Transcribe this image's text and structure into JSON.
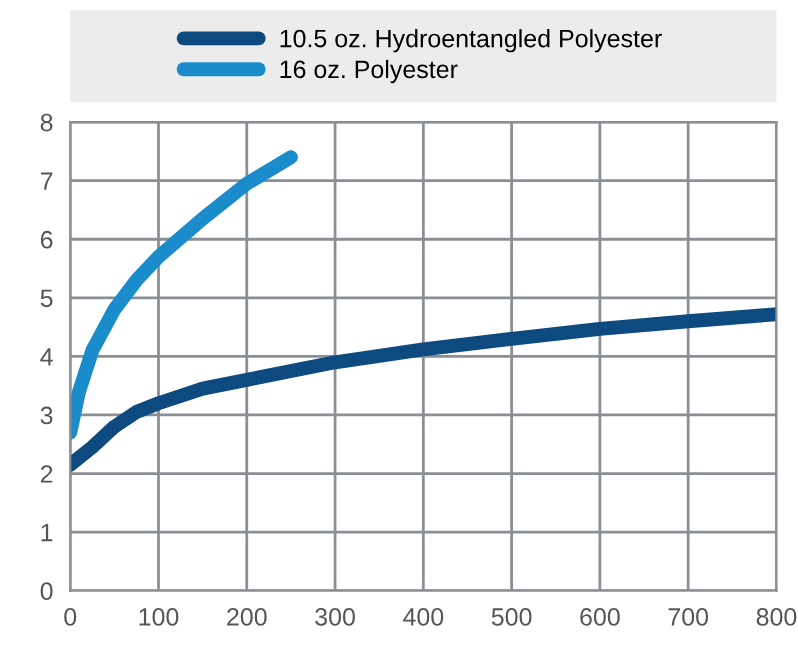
{
  "chart_data": {
    "type": "line",
    "xlim": [
      0,
      800
    ],
    "xticks": [
      0,
      100,
      200,
      300,
      400,
      500,
      600,
      700,
      800
    ],
    "ylim": [
      0,
      8
    ],
    "yticks": [
      0,
      1,
      2,
      3,
      4,
      5,
      6,
      7,
      8
    ],
    "grid": true,
    "legend": "top",
    "marker": "none",
    "line_style": "solid",
    "series": [
      {
        "name": "10.5 oz. Hydroentangled Polyester",
        "color": "#0d4a80",
        "x": [
          0,
          25,
          50,
          75,
          100,
          150,
          200,
          300,
          400,
          500,
          600,
          700,
          800
        ],
        "values": [
          2.15,
          2.45,
          2.8,
          3.05,
          3.2,
          3.45,
          3.6,
          3.9,
          4.12,
          4.3,
          4.47,
          4.6,
          4.72
        ]
      },
      {
        "name": "16 oz. Polyester",
        "color": "#1a8ccc",
        "x": [
          0,
          10,
          25,
          50,
          75,
          100,
          150,
          200,
          250
        ],
        "values": [
          2.7,
          3.4,
          4.1,
          4.8,
          5.3,
          5.7,
          6.35,
          6.95,
          7.4
        ]
      }
    ]
  }
}
